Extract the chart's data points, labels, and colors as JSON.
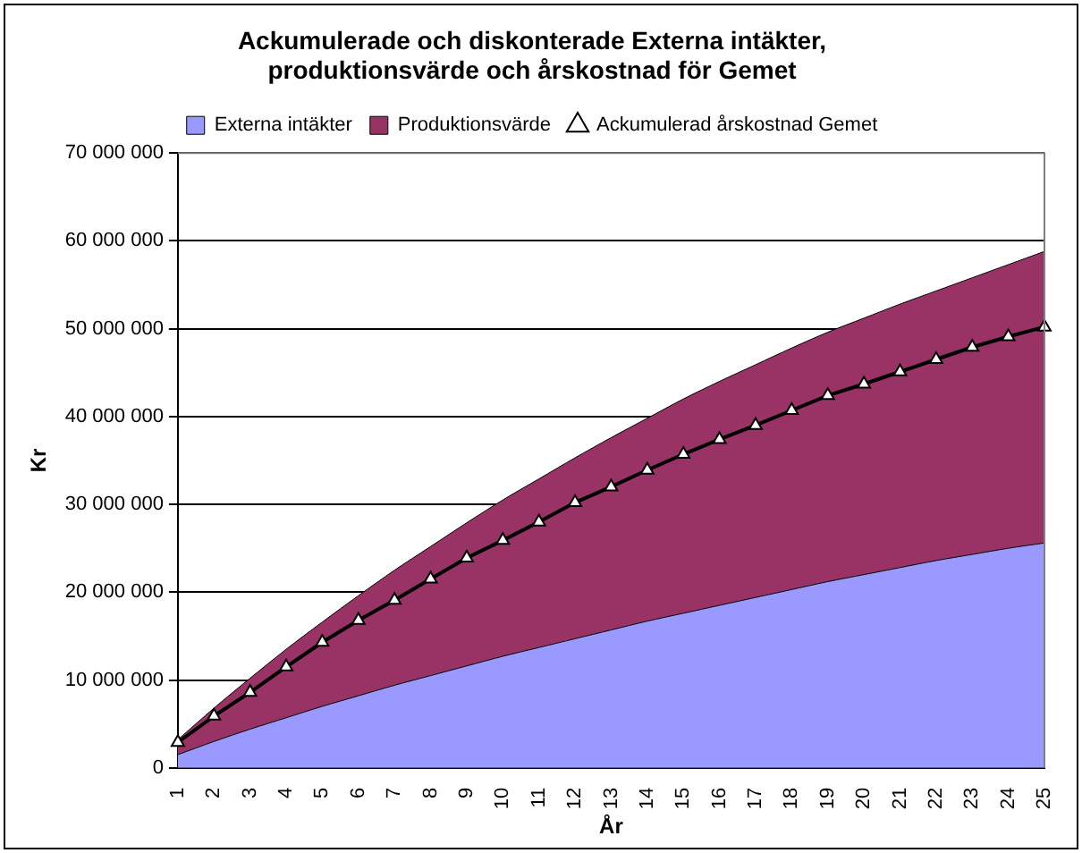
{
  "chart_data": {
    "type": "area",
    "title": "Ackumulerade och diskonterade Externa intäkter,\nproduktionsvärde och årskostnad för Gemet",
    "xlabel": "År",
    "ylabel": "Kr",
    "categories": [
      "1",
      "2",
      "3",
      "4",
      "5",
      "6",
      "7",
      "8",
      "9",
      "10",
      "11",
      "12",
      "13",
      "14",
      "15",
      "16",
      "17",
      "18",
      "19",
      "20",
      "21",
      "22",
      "23",
      "24",
      "25"
    ],
    "stacked": true,
    "grid": "y",
    "legend": "top",
    "ylim": [
      0,
      70000000
    ],
    "yticks": [
      {
        "value": 0,
        "label": "0"
      },
      {
        "value": 10000000,
        "label": "10 000 000"
      },
      {
        "value": 20000000,
        "label": "20 000 000"
      },
      {
        "value": 30000000,
        "label": "30 000 000"
      },
      {
        "value": 40000000,
        "label": "40 000 000"
      },
      {
        "value": 50000000,
        "label": "50 000 000"
      },
      {
        "value": 60000000,
        "label": "60 000 000"
      },
      {
        "value": 70000000,
        "label": "70 000 000"
      }
    ],
    "series": [
      {
        "name": "Externa intäkter",
        "color": "#9999ff",
        "values": [
          1500000,
          3000000,
          4400000,
          5700000,
          7000000,
          8200000,
          9400000,
          10500000,
          11600000,
          12700000,
          13700000,
          14700000,
          15700000,
          16700000,
          17600000,
          18500000,
          19400000,
          20300000,
          21200000,
          22000000,
          22800000,
          23600000,
          24300000,
          25000000,
          25600000
        ]
      },
      {
        "name": "Produktionsvärde",
        "color": "#993366",
        "values": [
          1700000,
          3800000,
          5800000,
          7800000,
          9600000,
          11400000,
          13100000,
          14700000,
          16300000,
          17800000,
          19200000,
          20600000,
          21900000,
          23100000,
          24400000,
          25500000,
          26500000,
          27500000,
          28400000,
          29200000,
          30000000,
          30700000,
          31500000,
          32300000,
          33200000
        ]
      },
      {
        "name": "Ackumulerad årskostnad Gemet",
        "type": "line",
        "color": "#000000",
        "marker": "triangle",
        "values": [
          2900000,
          5900000,
          8600000,
          11500000,
          14300000,
          16800000,
          19100000,
          21500000,
          23900000,
          25900000,
          28000000,
          30200000,
          32000000,
          33900000,
          35700000,
          37400000,
          39000000,
          40700000,
          42400000,
          43700000,
          45100000,
          46500000,
          47900000,
          49100000,
          50200000
        ]
      }
    ]
  }
}
